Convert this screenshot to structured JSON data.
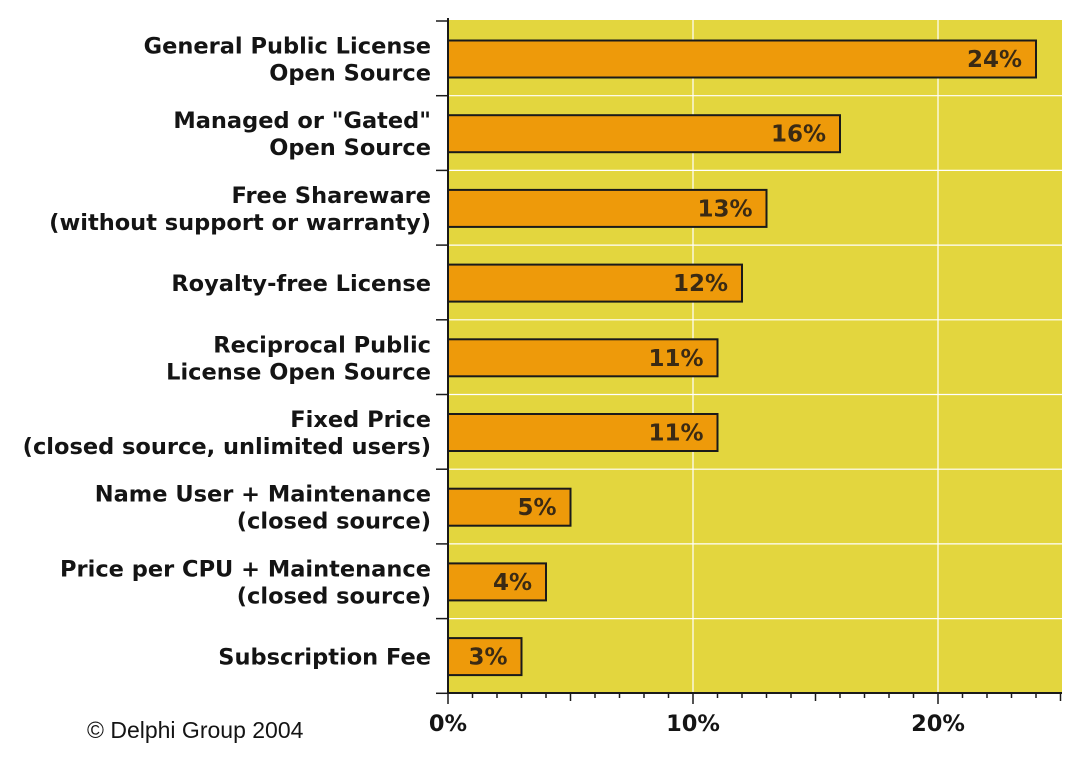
{
  "chart_data": {
    "type": "bar",
    "orientation": "horizontal",
    "categories": [
      [
        "General Public License",
        "Open Source"
      ],
      [
        "Managed or \"Gated\"",
        "Open Source"
      ],
      [
        "Free Shareware",
        "(without support or warranty)"
      ],
      [
        "Royalty-free License"
      ],
      [
        "Reciprocal Public",
        "License Open Source"
      ],
      [
        "Fixed Price",
        "(closed source, unlimited users)"
      ],
      [
        "Name User + Maintenance",
        "(closed source)"
      ],
      [
        "Price per CPU + Maintenance",
        "(closed source)"
      ],
      [
        "Subscription Fee"
      ]
    ],
    "values": [
      24,
      16,
      13,
      12,
      11,
      11,
      5,
      4,
      3
    ],
    "value_labels": [
      "24%",
      "16%",
      "13%",
      "12%",
      "11%",
      "11%",
      "5%",
      "4%",
      "3%"
    ],
    "x_ticks": [
      0,
      10,
      20
    ],
    "x_tick_labels": [
      "0%",
      "10%",
      "20%"
    ],
    "xlim": [
      0,
      25
    ],
    "grid": true,
    "title": "",
    "xlabel": "",
    "ylabel": "",
    "colors": {
      "plot_background": "#e3d63e",
      "bar_fill": "#ee9a0a",
      "bar_stroke": "#1a1a1a",
      "gridline": "#ffffff",
      "value_text": "#3a2a14"
    }
  },
  "credit": "© Delphi Group 2004"
}
